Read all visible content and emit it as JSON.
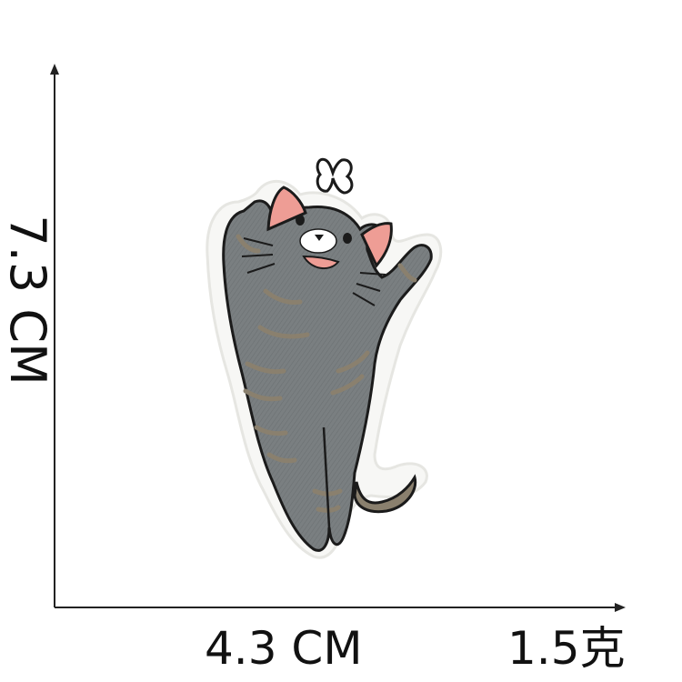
{
  "dimensions": {
    "height_label": "7.3 CM",
    "width_label": "4.3 CM",
    "weight_label": "1.5克"
  },
  "product": {
    "description_icon": "embroidered-gray-tabby-cat-patch-icon",
    "colors": {
      "fur": "#7a7f81",
      "stripe": "#8a806e",
      "ear": "#ee9d95",
      "outline": "#1b1b1b",
      "patch_border": "#f7f7f5",
      "background": "#ffffff"
    }
  }
}
